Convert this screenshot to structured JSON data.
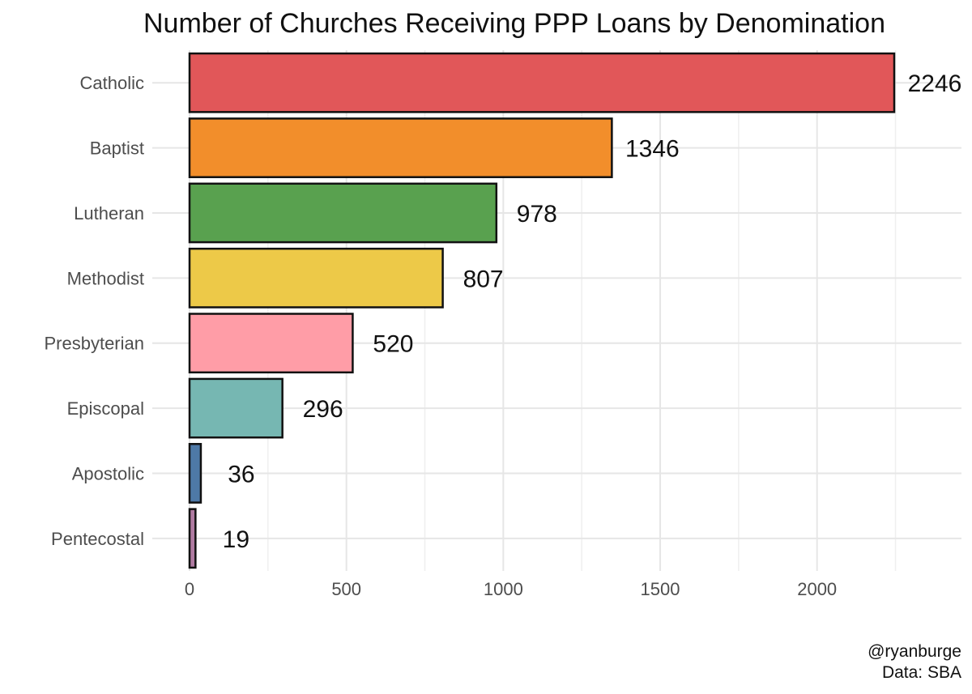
{
  "chart_data": {
    "type": "bar",
    "orientation": "horizontal",
    "title": "Number of Churches Receiving PPP Loans by Denomination",
    "categories": [
      "Catholic",
      "Baptist",
      "Lutheran",
      "Methodist",
      "Presbyterian",
      "Episcopal",
      "Apostolic",
      "Pentecostal"
    ],
    "values": [
      2246,
      1346,
      978,
      807,
      520,
      296,
      36,
      19
    ],
    "data_labels": [
      "2246",
      "1346",
      "978",
      "807",
      "520",
      "296",
      "36",
      "19"
    ],
    "colors": [
      "#E15759",
      "#F28E2B",
      "#59A14F",
      "#EDC948",
      "#FF9DA7",
      "#76B7B2",
      "#4E79A7",
      "#B07AA1"
    ],
    "xticks": [
      0,
      500,
      1000,
      1500,
      2000
    ],
    "xtick_labels": [
      "0",
      "500",
      "1000",
      "1500",
      "2000"
    ],
    "xlim": [
      0,
      2450
    ],
    "xlabel": "",
    "ylabel": "",
    "grid": true,
    "legend": "none"
  },
  "caption": {
    "line1": "@ryanburge",
    "line2": "Data: SBA"
  }
}
